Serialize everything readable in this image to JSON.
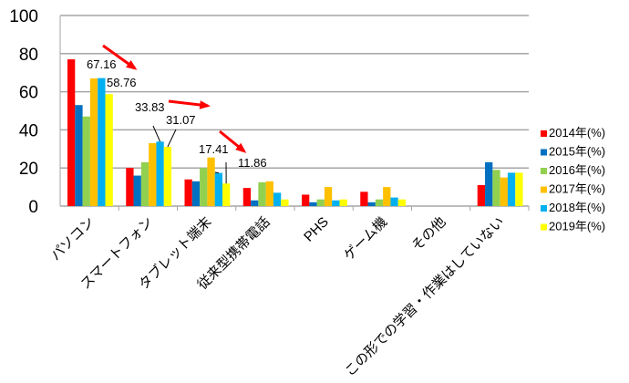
{
  "chart_data": {
    "type": "bar",
    "title": "",
    "xlabel": "",
    "ylabel": "",
    "ylim": [
      0,
      100
    ],
    "yticks": [
      "0",
      "20",
      "40",
      "60",
      "80",
      "100"
    ],
    "grid": true,
    "legend_position": "right",
    "categories": [
      "パソコン",
      "スマートフォン",
      "タブレット端末",
      "従来型携帯電話",
      "PHS",
      "ゲーム機",
      "その他",
      "この形での学習・作業はしていない"
    ],
    "series": [
      {
        "name": "2014年(%)",
        "color": "#ff0000",
        "values": [
          77,
          20,
          14,
          9.5,
          6,
          7.5,
          0,
          11
        ]
      },
      {
        "name": "2015年(%)",
        "color": "#0070c0",
        "values": [
          53,
          16,
          13,
          3,
          2,
          2,
          0,
          23
        ]
      },
      {
        "name": "2016年(%)",
        "color": "#92d050",
        "values": [
          47,
          23,
          20,
          12.5,
          3.5,
          3.5,
          0,
          19
        ]
      },
      {
        "name": "2017年(%)",
        "color": "#ffc000",
        "values": [
          67,
          33,
          25.5,
          13,
          10,
          10,
          0,
          15
        ]
      },
      {
        "name": "2018年(%)",
        "color": "#00b0f0",
        "values": [
          67.16,
          33.83,
          17.41,
          7,
          3,
          4.5,
          0,
          17.5
        ]
      },
      {
        "name": "2019年(%)",
        "color": "#ffff00",
        "values": [
          58.76,
          31.07,
          11.86,
          3.5,
          3.5,
          3.5,
          0,
          17.5
        ]
      }
    ],
    "annotations": [
      "67.16",
      "58.76",
      "33.83",
      "31.07",
      "17.41",
      "11.86"
    ]
  }
}
